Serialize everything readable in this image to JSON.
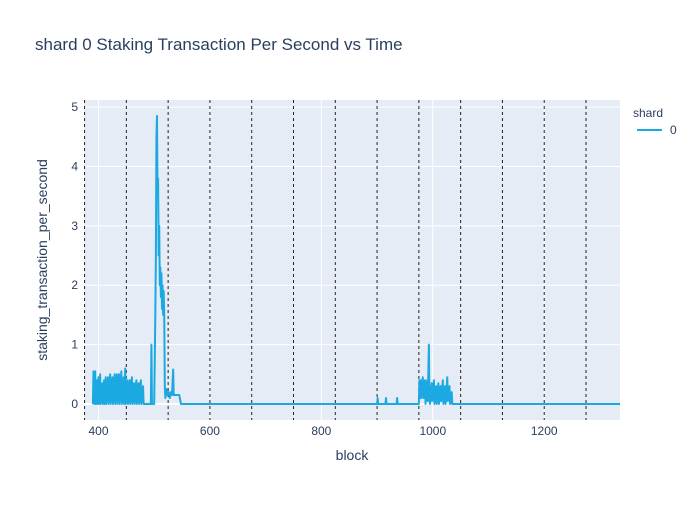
{
  "chart_data": {
    "type": "line",
    "title": "shard 0 Staking Transaction Per Second vs Time",
    "x_label": "block",
    "y_label": "staking_transaction_per_second",
    "legend_title": "shard",
    "series": [
      {
        "name": "0",
        "color": "#1ca9e1",
        "x": [
          390,
          391,
          392,
          394,
          395,
          397,
          398,
          400,
          401,
          403,
          404,
          407,
          408,
          410,
          411,
          413,
          414,
          417,
          418,
          421,
          422,
          425,
          426,
          429,
          430,
          433,
          434,
          437,
          438,
          441,
          442,
          445,
          446,
          448,
          449,
          452,
          453,
          456,
          457,
          460,
          461,
          464,
          465,
          468,
          469,
          472,
          473,
          476,
          477,
          480,
          481,
          494,
          495,
          496,
          500,
          502,
          503,
          504,
          505,
          506,
          507,
          508,
          509,
          510,
          511,
          512,
          513,
          514,
          515,
          516,
          517,
          518,
          519,
          520,
          522,
          524,
          526,
          528,
          530,
          532,
          534,
          535,
          538,
          545,
          548,
          900,
          901,
          902,
          915,
          916,
          917,
          935,
          936,
          937,
          975,
          976,
          977,
          979,
          980,
          982,
          983,
          984,
          986,
          987,
          990,
          991,
          993,
          994,
          995,
          998,
          999,
          1002,
          1003,
          1006,
          1007,
          1010,
          1011,
          1014,
          1015,
          1018,
          1019,
          1022,
          1023,
          1026,
          1027,
          1030,
          1031,
          1034,
          1035,
          1336
        ],
        "values": [
          0,
          0.55,
          0,
          0.55,
          0,
          0.4,
          0,
          0.45,
          0,
          0.5,
          0,
          0.35,
          0,
          0.4,
          0,
          0.45,
          0,
          0.45,
          0,
          0.5,
          0,
          0.45,
          0,
          0.5,
          0,
          0.5,
          0,
          0.5,
          0,
          0.55,
          0,
          0.45,
          0,
          0.6,
          0,
          0.4,
          0,
          0.4,
          0,
          0.45,
          0,
          0.35,
          0,
          0.4,
          0,
          0.35,
          0,
          0.4,
          0,
          0.3,
          0,
          0,
          1,
          0,
          0,
          1.5,
          2.5,
          4.5,
          4.85,
          3.5,
          3.8,
          2.5,
          3,
          2,
          2.3,
          1.8,
          2.2,
          1.6,
          2,
          1.5,
          1.9,
          1.5,
          0.3,
          0.1,
          0.25,
          0.15,
          0.2,
          0.1,
          0.2,
          0.15,
          0.58,
          0.15,
          0.15,
          0.15,
          0,
          0,
          0.1,
          0,
          0,
          0.1,
          0,
          0,
          0.1,
          0,
          0,
          0.4,
          0.1,
          0.4,
          0.1,
          0.45,
          0.3,
          0.1,
          0.4,
          0,
          0.4,
          0.05,
          1,
          0.1,
          0,
          0.35,
          0.05,
          0.4,
          0,
          0.3,
          0,
          0.35,
          0,
          0.3,
          0.05,
          0.4,
          0,
          0.3,
          0,
          0.45,
          0.05,
          0.3,
          0,
          0.2,
          0,
          0
        ]
      }
    ],
    "vlines": [
      375,
      450,
      525,
      600,
      675,
      750,
      825,
      900,
      975,
      1050,
      1125,
      1200,
      1275
    ],
    "xlim": [
      374,
      1336
    ],
    "ylim": [
      -0.27,
      5.12
    ],
    "xticks": [
      400,
      600,
      800,
      1000,
      1200
    ],
    "yticks": [
      0,
      1,
      2,
      3,
      4,
      5
    ],
    "grid": true
  }
}
